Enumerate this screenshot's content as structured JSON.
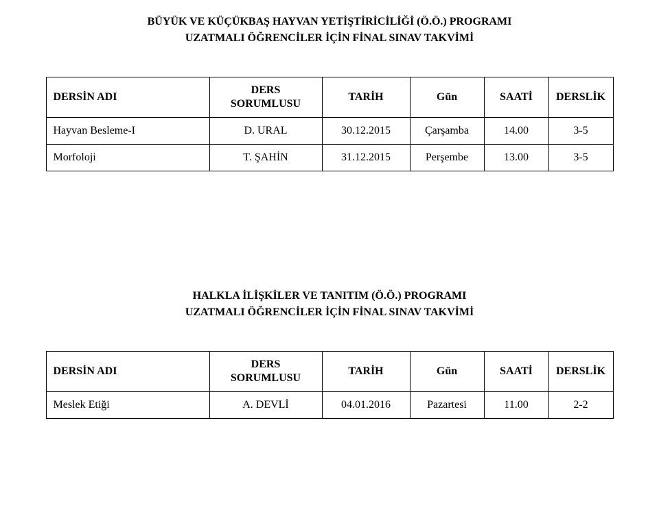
{
  "header_labels": {
    "course_name": "DERSİN ADI",
    "instructor_line1": "DERS",
    "instructor_line2": "SORUMLUSU",
    "date": "TARİH",
    "day": "Gün",
    "time": "SAATİ",
    "room": "DERSLİK"
  },
  "sections": [
    {
      "title_line1": "BÜYÜK VE KÜÇÜKBAŞ HAYVAN YETİŞTİRİCİLİĞİ (Ö.Ö.) PROGRAMI",
      "title_line2": "UZATMALI ÖĞRENCİLER İÇİN FİNAL SINAV TAKVİMİ",
      "rows": [
        {
          "name": "Hayvan Besleme-I",
          "instructor": "D. URAL",
          "date": "30.12.2015",
          "day": "Çarşamba",
          "time": "14.00",
          "room": "3-5"
        },
        {
          "name": "Morfoloji",
          "instructor": "T. ŞAHİN",
          "date": "31.12.2015",
          "day": "Perşembe",
          "time": "13.00",
          "room": "3-5"
        }
      ]
    },
    {
      "title_line1": "HALKLA İLİŞKİLER VE TANITIM (Ö.Ö.) PROGRAMI",
      "title_line2": "UZATMALI ÖĞRENCİLER İÇİN FİNAL SINAV TAKVİMİ",
      "rows": [
        {
          "name": "Meslek Etiği",
          "instructor": "A. DEVLİ",
          "date": "04.01.2016",
          "day": "Pazartesi",
          "time": "11.00",
          "room": "2-2"
        }
      ]
    }
  ]
}
